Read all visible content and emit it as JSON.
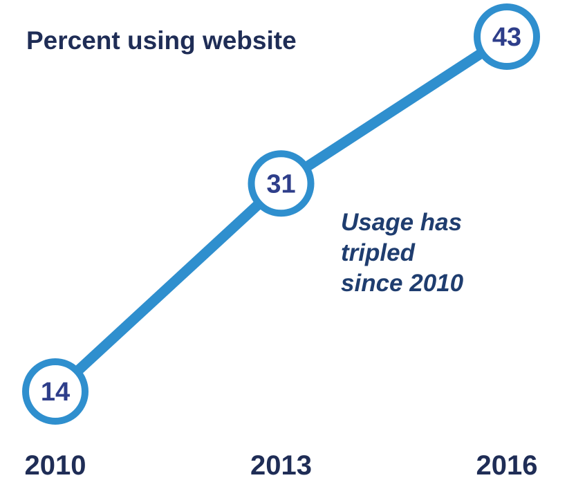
{
  "chart_data": {
    "type": "line",
    "title": "Percent using website",
    "categories": [
      "2010",
      "2013",
      "2016"
    ],
    "series": [
      {
        "values": [
          14,
          31,
          43
        ]
      }
    ],
    "data_labels": [
      "14",
      "31",
      "43"
    ],
    "annotation": [
      "Usage has",
      "tripled",
      "since 2010"
    ],
    "xlabel": "",
    "ylabel": "",
    "grid": false,
    "y_axis_shown": false,
    "colors": {
      "line": "#2f8fce",
      "marker_fill": "#ffffff",
      "label_text": "#2e3e8a",
      "title_text": "#1f2d56",
      "axis_text": "#1f2d56",
      "annotation_text": "#1f3d6f"
    }
  }
}
